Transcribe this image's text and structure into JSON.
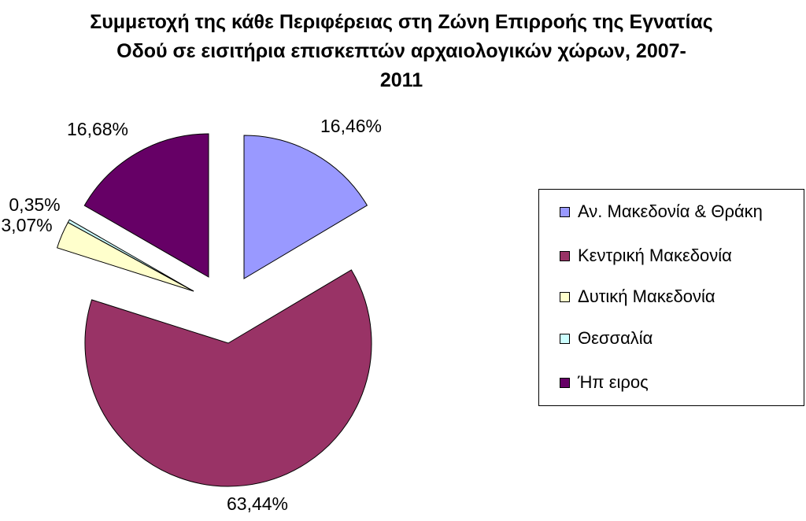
{
  "chart_data": {
    "type": "pie",
    "title_lines": [
      "Συμμετοχή της κάθε Περιφέρειας στη Ζώνη Επιρροής της Εγνατίας",
      "Οδού σε εισιτήρια επισκεπτών αρχαιολογικών χώρων, 2007-",
      "2011"
    ],
    "slices": [
      {
        "name": "Αν. Μακεδονία & Θράκη",
        "value": 16.46,
        "label": "16,46%",
        "color": "#9999ff"
      },
      {
        "name": "Κεντρική Μακεδονία",
        "value": 63.44,
        "label": "63,44%",
        "color": "#993366"
      },
      {
        "name": "Δυτική Μακεδονία",
        "value": 3.07,
        "label": "3,07%",
        "color": "#ffffcc"
      },
      {
        "name": "Θεσσαλία",
        "value": 0.35,
        "label": "0,35%",
        "color": "#ccffff"
      },
      {
        "name": "Ήπ ειρος",
        "value": 16.68,
        "label": "16,68%",
        "color": "#660066"
      }
    ],
    "legend_position": "right",
    "exploded": true
  }
}
